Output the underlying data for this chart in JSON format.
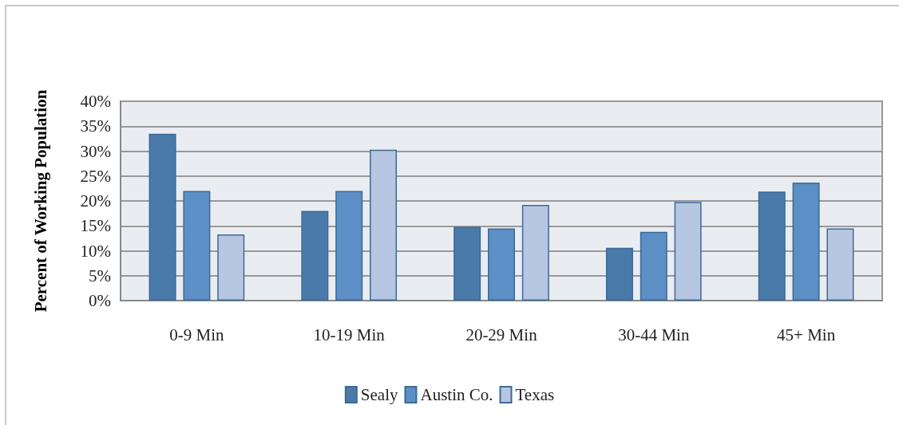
{
  "chart_data": {
    "type": "bar",
    "ylabel": "Percent of Working Population",
    "categories": [
      "0-9 Min",
      "10-19 Min",
      "20-29 Min",
      "30-44 Min",
      "45+ Min"
    ],
    "series": [
      {
        "name": "Sealy",
        "color": "#4a7aaa",
        "values": [
          33.5,
          18.0,
          14.8,
          10.6,
          21.9
        ]
      },
      {
        "name": "Austin Co.",
        "color": "#5b8fc5",
        "values": [
          22.0,
          22.0,
          14.5,
          13.8,
          23.7
        ]
      },
      {
        "name": "Texas",
        "color": "#b7c6e1",
        "values": [
          13.3,
          30.3,
          19.2,
          19.8,
          14.5
        ]
      }
    ],
    "ylim": [
      0,
      40
    ],
    "yticks": [
      {
        "value": 0,
        "label": "0%"
      },
      {
        "value": 5,
        "label": "5%"
      },
      {
        "value": 10,
        "label": "10%"
      },
      {
        "value": 15,
        "label": "15%"
      },
      {
        "value": 20,
        "label": "20%"
      },
      {
        "value": 25,
        "label": "25%"
      },
      {
        "value": 30,
        "label": "30%"
      },
      {
        "value": 35,
        "label": "35%"
      },
      {
        "value": 40,
        "label": "40%"
      }
    ],
    "grid": "y",
    "legend": "bottom"
  }
}
